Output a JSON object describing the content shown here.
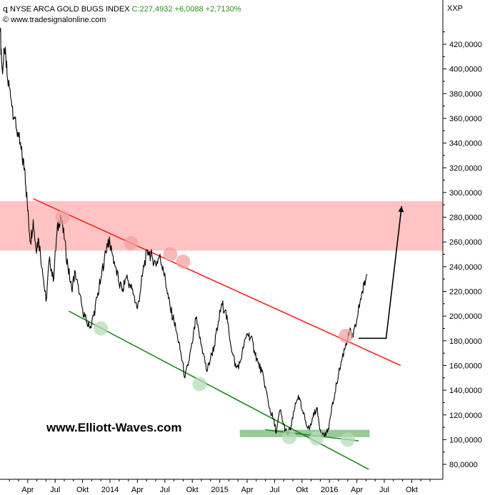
{
  "header": {
    "instrument_label": "NYSE ARCA GOLD BUGS INDEX",
    "last_value": "C:227,4932",
    "change": "+6,0088",
    "change_pct": "+2,7130%",
    "copyright": "© www.tradesignalonline.com",
    "symbol": "XXP"
  },
  "watermark": "www.Elliott-Waves.com",
  "colors": {
    "price": "#000000",
    "resistance_line": "#ff2020",
    "support_line": "#1e8a1e",
    "resistance_zone": "#ffb8b8",
    "support_zone": "#8cc48c",
    "touch_red": "#f4a0a0",
    "touch_green": "#b6dcb6",
    "change_text": "#1a9a1a"
  },
  "chart_data": {
    "type": "line",
    "ylim": [
      70,
      440
    ],
    "y_ticks": [
      "420,0000",
      "400,0000",
      "380,0000",
      "360,0000",
      "340,0000",
      "320,0000",
      "300,0000",
      "280,0000",
      "260,0000",
      "240,0000",
      "220,0000",
      "200,0000",
      "180,0000",
      "160,0000",
      "140,0000",
      "120,0000",
      "100,0000",
      "80,0000"
    ],
    "y_tick_values": [
      420,
      400,
      380,
      360,
      340,
      320,
      300,
      280,
      260,
      240,
      220,
      200,
      180,
      160,
      140,
      120,
      100,
      80
    ],
    "x_ticks": [
      "Apr",
      "Jul",
      "Okt",
      "2014",
      "Apr",
      "Jul",
      "Okt",
      "2015",
      "Apr",
      "Jul",
      "Okt",
      "2016",
      "Apr",
      "Jul",
      "Okt"
    ],
    "x_tick_months": [
      3,
      6,
      9,
      12,
      15,
      18,
      21,
      24,
      27,
      30,
      33,
      36,
      39,
      42,
      45
    ],
    "x_range_months": [
      0,
      47.5
    ],
    "series": [
      {
        "month": [
          0.0,
          0.2,
          0.5,
          0.8,
          1.2,
          1.6,
          2.0,
          2.4,
          2.7,
          3.0,
          3.3,
          3.6,
          3.9,
          4.2,
          4.6,
          5.0,
          5.4,
          5.8,
          6.2,
          6.6,
          7.0,
          7.4,
          7.8,
          8.2,
          8.6,
          9.0,
          9.4,
          9.8,
          10.2,
          10.6,
          11.0,
          11.4,
          11.8,
          12.2,
          12.6,
          13.0,
          13.4,
          13.8,
          14.2,
          14.6,
          15.0,
          15.4,
          15.8,
          16.2,
          16.6,
          17.0,
          17.4,
          17.8,
          18.2,
          18.6,
          19.0,
          19.4,
          19.8,
          20.2,
          20.6,
          21.0,
          21.4,
          21.8,
          22.2,
          22.6,
          23.0,
          23.4,
          23.8,
          24.2,
          24.6,
          25.0,
          25.4,
          25.8,
          26.2,
          26.6,
          27.0,
          27.4,
          27.8,
          28.2,
          28.6,
          29.0,
          29.4,
          29.8,
          30.2,
          30.6,
          31.0,
          31.4,
          31.8,
          32.2,
          32.6,
          33.0,
          33.4,
          33.8,
          34.2,
          34.6,
          35.0,
          35.4,
          35.8,
          36.2,
          36.6,
          37.0,
          37.4,
          37.8,
          38.2,
          38.6,
          39.0,
          39.4,
          39.8,
          40.1
        ],
        "values": [
          430,
          400,
          412,
          392,
          375,
          360,
          345,
          328,
          318,
          285,
          260,
          278,
          255,
          262,
          238,
          212,
          248,
          228,
          268,
          282,
          262,
          240,
          222,
          236,
          218,
          206,
          196,
          190,
          200,
          215,
          230,
          248,
          262,
          252,
          240,
          226,
          222,
          232,
          225,
          217,
          206,
          225,
          245,
          252,
          248,
          242,
          248,
          240,
          222,
          206,
          196,
          182,
          168,
          150,
          163,
          178,
          198,
          182,
          170,
          155,
          166,
          176,
          192,
          210,
          205,
          188,
          170,
          158,
          162,
          174,
          186,
          183,
          172,
          162,
          155,
          143,
          126,
          118,
          106,
          124,
          112,
          104,
          110,
          125,
          136,
          124,
          115,
          108,
          118,
          126,
          108,
          103,
          106,
          122,
          138,
          153,
          166,
          178,
          187,
          183,
          197,
          214,
          225,
          234
        ]
      }
    ],
    "annotations": {
      "resistance_zone": [
        253,
        293
      ],
      "support_zone": {
        "from_month": 26.2,
        "to_month": 40.4,
        "y": [
          102,
          108
        ]
      },
      "resistance_line": {
        "from": [
          3.6,
          295
        ],
        "to": [
          43.8,
          160
        ]
      },
      "support_line": {
        "from": [
          7.5,
          204
        ],
        "to": [
          40.3,
          76
        ]
      },
      "support_line_2": {
        "from": [
          29.0,
          108
        ],
        "to": [
          39.2,
          99
        ]
      },
      "projection": [
        [
          39.2,
          182
        ],
        [
          42.2,
          182
        ],
        [
          43.9,
          289
        ]
      ],
      "touch_points_resistance": [
        [
          6.8,
          280
        ],
        [
          14.3,
          259
        ],
        [
          18.6,
          250
        ],
        [
          20.0,
          244
        ],
        [
          37.8,
          184
        ]
      ],
      "touch_points_support": [
        [
          11.0,
          190
        ],
        [
          21.8,
          145
        ],
        [
          31.6,
          102
        ],
        [
          34.6,
          101
        ],
        [
          38.0,
          100
        ]
      ]
    }
  }
}
